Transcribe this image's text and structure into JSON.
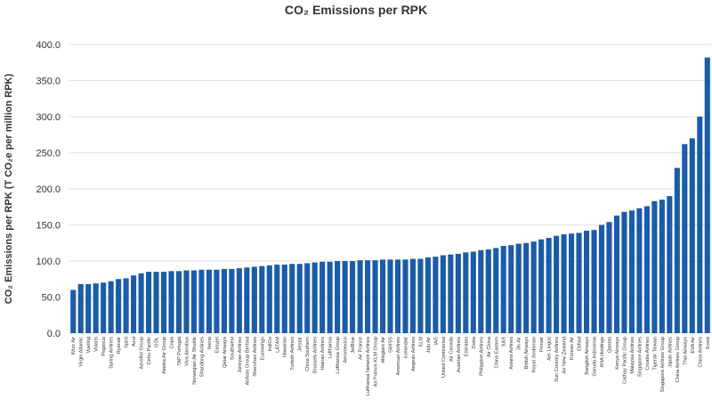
{
  "chart_data": {
    "type": "bar",
    "title": "CO₂ Emissions per RPK",
    "y_label": "CO₂ Emissions per RPK (T CO₂e per million RPK)",
    "categories": [
      "Wizz Air",
      "Virgin Atlantic",
      "Vueling",
      "Volaris",
      "Pegasus",
      "Spring Airlines",
      "Ryanair",
      "Spirit",
      "Azul",
      "Aeroflot Group",
      "Cebu Pacific",
      "GOL",
      "Alaska Air Group",
      "Copa",
      "TAP Portugal",
      "Viva Aerobus",
      "Norwegian Air Shuttle",
      "Shandong Airlines",
      "Iberia",
      "Easyjet",
      "Qatar Airways",
      "Southwest",
      "Juneyao Airlines",
      "AirAsia Group Berhad",
      "Shenzhen Airlines",
      "Eurowings",
      "IndiGo",
      "LATAM",
      "Hawaiian",
      "Turkish Airlines",
      "Jetstar",
      "China Southern",
      "Brussels Airlines",
      "Hainan Airlines",
      "Lufthansa",
      "Lufthansa Group",
      "Aeromexico",
      "JetBlue",
      "Air France",
      "Lufthansa Network Airlines",
      "Air France-KLM Group",
      "Allegiant Air",
      "SWISS",
      "American Airlines",
      "Icelandair",
      "Aegean Airlines",
      "KLM",
      "Jeju Air",
      "IAG",
      "United Continental",
      "Air Canada",
      "Austrian Airlines",
      "Emirates",
      "Delta",
      "Philippine Airlines",
      "Air China",
      "China Eastern",
      "SAS",
      "Asiana Airlines",
      "Jin Air",
      "British Airways",
      "Royal Jordanian",
      "Finnair",
      "Aer Lingus",
      "Sun Country Airlines",
      "Air New Zealand",
      "Korean Air",
      "Etihad",
      "Bangkok Airways",
      "Garuda Indonesia",
      "ANA Holdings",
      "Qantas",
      "Kenya Airways",
      "Cathay Pacific Group",
      "Malaysia Airlines",
      "Singapore Airlines",
      "Croatia Airlines",
      "Tigerair Taiwan",
      "Singapore Airlines Group",
      "Japan Airlines",
      "China Airlines Group",
      "Thai Airways",
      "EVA Air",
      "China Airlines",
      "Scoot"
    ],
    "values": [
      60,
      68,
      68,
      69,
      70,
      72,
      75,
      76,
      80,
      83,
      85,
      85,
      85,
      86,
      86,
      87,
      87,
      88,
      88,
      88,
      89,
      89,
      90,
      91,
      92,
      93,
      94,
      95,
      95,
      96,
      96,
      97,
      98,
      99,
      99,
      100,
      100,
      100,
      101,
      101,
      101,
      102,
      102,
      102,
      102,
      103,
      103,
      105,
      106,
      108,
      109,
      110,
      112,
      113,
      115,
      116,
      118,
      121,
      122,
      124,
      125,
      127,
      130,
      132,
      135,
      137,
      138,
      139,
      142,
      143,
      150,
      154,
      163,
      168,
      170,
      173,
      176,
      183,
      185,
      190,
      229,
      262,
      270,
      300,
      382
    ],
    "color": "#1b5ca8",
    "ylim": [
      0,
      400
    ],
    "yticks": [
      {
        "value": 0,
        "label": "0.0"
      },
      {
        "value": 50,
        "label": "50.0"
      },
      {
        "value": 100,
        "label": "100.0"
      },
      {
        "value": 150,
        "label": "150.0"
      },
      {
        "value": 200,
        "label": "200.0"
      },
      {
        "value": 250,
        "label": "250.0"
      },
      {
        "value": 300,
        "label": "300.0"
      },
      {
        "value": 350,
        "label": "350.0"
      },
      {
        "value": 400,
        "label": "400.0"
      }
    ],
    "grid": true
  }
}
